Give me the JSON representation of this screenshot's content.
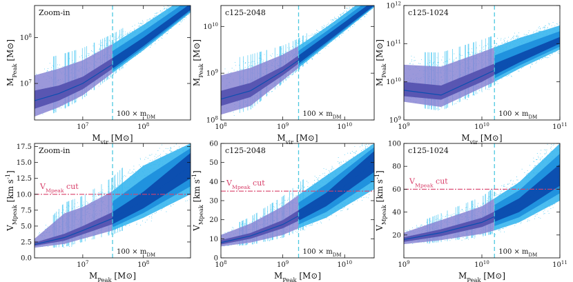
{
  "colors": {
    "points": "#35c0f0",
    "band_outer_cyan": "#38b6ee",
    "band_mid_cyan": "#1e8fdc",
    "band_inner": "#0c4fb0",
    "band_outer_purple": "#8a86d4",
    "band_mid_purple": "#5552b0",
    "vline": "#4bc8e0",
    "hline": "#d8406a"
  },
  "chart_data": [
    {
      "panel": "top-left",
      "type": "scatter",
      "title": "Zoom-in",
      "xlabel": "M_vir [M_sun]",
      "ylabel": "M_Peak [M_sun]",
      "xscale": "log",
      "yscale": "log",
      "xlim": [
        1600000.0,
        600000000.0
      ],
      "ylim": [
        1600000.0,
        500000000.0
      ],
      "xticks": [
        {
          "v": 10000000.0,
          "label": "10^7"
        },
        {
          "v": 100000000.0,
          "label": "10^8"
        }
      ],
      "yticks": [
        {
          "v": 10000000.0,
          "label": "10^7"
        },
        {
          "v": 100000000.0,
          "label": "10^8"
        }
      ],
      "vline": 31000000.0,
      "vline_label": "100 x m_DM",
      "hline": null,
      "hline_label": "",
      "band_x": [
        1600000.0,
        4000000.0,
        10000000.0,
        31000000.0,
        100000000.0,
        600000000.0
      ],
      "median": [
        4200000.0,
        6000000.0,
        10000000.0,
        26000000.0,
        75000000.0,
        430000000.0
      ],
      "band_outer": [
        [
          1900000.0,
          15000000.0
        ],
        [
          3000000.0,
          21000000.0
        ],
        [
          5500000.0,
          32000000.0
        ],
        [
          17000000.0,
          72000000.0
        ],
        [
          53000000.0,
          190000000.0
        ],
        [
          350000000.0,
          900000000.0
        ]
      ],
      "band_inner": [
        [
          2800000.0,
          7000000.0
        ],
        [
          4200000.0,
          9000000.0
        ],
        [
          7500000.0,
          14000000.0
        ],
        [
          21000000.0,
          36000000.0
        ],
        [
          65000000.0,
          100000000.0
        ],
        [
          400000000.0,
          550000000.0
        ]
      ]
    },
    {
      "panel": "top-middle",
      "type": "scatter",
      "title": "c125-2048",
      "xlabel": "M_vir [M_sun]",
      "ylabel": "M_Peak [M_sun]",
      "xscale": "log",
      "yscale": "log",
      "xlim": [
        100000000.0,
        30000000000.0
      ],
      "ylim": [
        100000000.0,
        28000000000.0
      ],
      "xticks": [
        {
          "v": 100000000.0,
          "label": "10^8"
        },
        {
          "v": 1000000000.0,
          "label": "10^9"
        },
        {
          "v": 10000000000.0,
          "label": "10^10"
        }
      ],
      "yticks": [
        {
          "v": 100000000.0,
          "label": "10^8"
        },
        {
          "v": 1000000000.0,
          "label": "10^9"
        },
        {
          "v": 10000000000.0,
          "label": "10^10"
        }
      ],
      "vline": 1800000000.0,
      "vline_label": "100 x m_DM",
      "hline": null,
      "hline_label": "",
      "band_x": [
        100000000.0,
        300000000.0,
        1000000000.0,
        1800000000.0,
        5000000000.0,
        30000000000.0
      ],
      "median": [
        280000000.0,
        420000000.0,
        1100000000.0,
        1900000000.0,
        5300000000.0,
        31000000000.0
      ],
      "band_outer": [
        [
          130000000.0,
          900000000.0
        ],
        [
          200000000.0,
          1300000000.0
        ],
        [
          700000000.0,
          2500000000.0
        ],
        [
          1300000000.0,
          3800000000.0
        ],
        [
          3800000000.0,
          9500000000.0
        ],
        [
          26000000000.0,
          55000000000.0
        ]
      ],
      "band_inner": [
        [
          200000000.0,
          420000000.0
        ],
        [
          310000000.0,
          620000000.0
        ],
        [
          900000000.0,
          1400000000.0
        ],
        [
          1600000000.0,
          2400000000.0
        ],
        [
          4500000000.0,
          6400000000.0
        ],
        [
          28000000000.0,
          36000000000.0
        ]
      ]
    },
    {
      "panel": "top-right",
      "type": "scatter",
      "title": "c125-1024",
      "xlabel": "M_vir [M_sun]",
      "ylabel": "M_Peak [M_sun]",
      "xscale": "log",
      "yscale": "log",
      "xlim": [
        1000000000.0,
        100000000000.0
      ],
      "ylim": [
        1000000000.0,
        1000000000000.0
      ],
      "xticks": [
        {
          "v": 1000000000.0,
          "label": "10^9"
        },
        {
          "v": 10000000000.0,
          "label": "10^10"
        },
        {
          "v": 100000000000.0,
          "label": "10^11"
        }
      ],
      "yticks": [
        {
          "v": 1000000000.0,
          "label": "10^9"
        },
        {
          "v": 10000000000.0,
          "label": "10^10"
        },
        {
          "v": 100000000000.0,
          "label": "10^11"
        },
        {
          "v": 1000000000000.0,
          "label": "10^12"
        }
      ],
      "vline": 14500000000.0,
      "vline_label": "100 x m_DM",
      "hline": null,
      "hline_label": "",
      "band_x": [
        1000000000.0,
        3000000000.0,
        10000000000.0,
        14500000000.0,
        30000000000.0,
        100000000000.0
      ],
      "median": [
        6000000000.0,
        4500000000.0,
        14000000000.0,
        20000000000.0,
        40000000000.0,
        120000000000.0
      ],
      "band_outer": [
        [
          3000000000.0,
          28000000000.0
        ],
        [
          2200000000.0,
          25000000000.0
        ],
        [
          7000000000.0,
          60000000000.0
        ],
        [
          10000000000.0,
          80000000000.0
        ],
        [
          22000000000.0,
          140000000000.0
        ],
        [
          70000000000.0,
          300000000000.0
        ]
      ],
      "band_inner": [
        [
          4200000000.0,
          10000000000.0
        ],
        [
          3400000000.0,
          8000000000.0
        ],
        [
          10000000000.0,
          22000000000.0
        ],
        [
          15000000000.0,
          30000000000.0
        ],
        [
          32000000000.0,
          55000000000.0
        ],
        [
          100000000000.0,
          150000000000.0
        ]
      ]
    },
    {
      "panel": "bottom-left",
      "type": "scatter",
      "title": "Zoom-in",
      "xlabel": "M_Peak [M_sun]",
      "ylabel": "V_Mpeak [km s^-1]",
      "xscale": "log",
      "yscale": "linear",
      "xlim": [
        1600000.0,
        600000000.0
      ],
      "ylim": [
        0,
        18
      ],
      "xticks": [
        {
          "v": 10000000.0,
          "label": "10^7"
        },
        {
          "v": 100000000.0,
          "label": "10^8"
        }
      ],
      "yticks": [
        {
          "v": 0,
          "label": "0.0"
        },
        {
          "v": 2.5,
          "label": "2.5"
        },
        {
          "v": 5,
          "label": "5.0"
        },
        {
          "v": 7.5,
          "label": "7.5"
        },
        {
          "v": 10,
          "label": "10.0"
        },
        {
          "v": 12.5,
          "label": "12.5"
        },
        {
          "v": 15,
          "label": "15.0"
        },
        {
          "v": 17.5,
          "label": "17.5"
        }
      ],
      "vline": 31000000.0,
      "vline_label": "100 x m_DM",
      "hline": 10,
      "hline_label": "V_Mpeak cut",
      "band_x": [
        1600000.0,
        5000000.0,
        10000000.0,
        31000000.0,
        100000000.0,
        600000000.0
      ],
      "median": [
        2.1,
        3.2,
        4.3,
        6.2,
        9.0,
        14.5
      ],
      "band_outer": [
        [
          1.6,
          3.0
        ],
        [
          2.2,
          7.0
        ],
        [
          3.0,
          8.0
        ],
        [
          4.3,
          10.5
        ],
        [
          6.3,
          14.5
        ],
        [
          10.0,
          18.0
        ]
      ],
      "band_inner": [
        [
          1.9,
          2.4
        ],
        [
          2.7,
          3.8
        ],
        [
          3.7,
          5.0
        ],
        [
          5.3,
          7.2
        ],
        [
          7.8,
          10.4
        ],
        [
          12.5,
          16.5
        ]
      ]
    },
    {
      "panel": "bottom-middle",
      "type": "scatter",
      "title": "c125-2048",
      "xlabel": "M_Peak [M_sun]",
      "ylabel": "V_Mpeak [km s^-1]",
      "xscale": "log",
      "yscale": "linear",
      "xlim": [
        100000000.0,
        30000000000.0
      ],
      "ylim": [
        0,
        60
      ],
      "xticks": [
        {
          "v": 100000000.0,
          "label": "10^8"
        },
        {
          "v": 1000000000.0,
          "label": "10^9"
        },
        {
          "v": 10000000000.0,
          "label": "10^10"
        }
      ],
      "yticks": [
        {
          "v": 0,
          "label": "0"
        },
        {
          "v": 10,
          "label": "10"
        },
        {
          "v": 20,
          "label": "20"
        },
        {
          "v": 30,
          "label": "30"
        },
        {
          "v": 40,
          "label": "40"
        },
        {
          "v": 50,
          "label": "50"
        },
        {
          "v": 60,
          "label": "60"
        }
      ],
      "vline": 1800000000.0,
      "vline_label": "100 x m_DM",
      "hline": 35,
      "hline_label": "V_Mpeak cut",
      "band_x": [
        100000000.0,
        300000000.0,
        1000000000.0,
        1800000000.0,
        5000000000.0,
        30000000000.0
      ],
      "median": [
        8.0,
        11.5,
        17.5,
        22.0,
        30.0,
        50.0
      ],
      "band_outer": [
        [
          6.0,
          12.0
        ],
        [
          8.0,
          18.0
        ],
        [
          12.0,
          27.0
        ],
        [
          15.5,
          33.0
        ],
        [
          21.0,
          43.0
        ],
        [
          36.0,
          60.0
        ]
      ],
      "band_inner": [
        [
          7.0,
          9.3
        ],
        [
          10.0,
          13.0
        ],
        [
          15.5,
          19.8
        ],
        [
          19.5,
          25.0
        ],
        [
          27.0,
          34.0
        ],
        [
          45.0,
          56.0
        ]
      ]
    },
    {
      "panel": "bottom-right",
      "type": "scatter",
      "title": "c125-1024",
      "xlabel": "M_Peak [M_sun]",
      "ylabel": "V_Mpeak [km s^-1]",
      "xscale": "log",
      "yscale": "linear",
      "xlim": [
        1000000000.0,
        100000000000.0
      ],
      "ylim": [
        0,
        100
      ],
      "xticks": [
        {
          "v": 1000000000.0,
          "label": "10^9"
        },
        {
          "v": 10000000000.0,
          "label": "10^10"
        },
        {
          "v": 100000000000.0,
          "label": "10^11"
        }
      ],
      "yticks": [
        {
          "v": 20,
          "label": "20"
        },
        {
          "v": 40,
          "label": "40"
        },
        {
          "v": 60,
          "label": "60"
        },
        {
          "v": 80,
          "label": "80"
        },
        {
          "v": 100,
          "label": "100"
        }
      ],
      "vline": 14500000000.0,
      "vline_label": "100 x m_DM",
      "hline": 60,
      "hline_label": "V_Mpeak cut",
      "band_x": [
        1000000000.0,
        3000000000.0,
        10000000000.0,
        14500000000.0,
        30000000000.0,
        100000000000.0
      ],
      "median": [
        16.0,
        22.0,
        31.0,
        36.0,
        46.0,
        72.0
      ],
      "band_outer": [
        [
          12.0,
          22.0
        ],
        [
          15.5,
          33.0
        ],
        [
          21.0,
          45.0
        ],
        [
          24.0,
          52.0
        ],
        [
          31.0,
          66.0
        ],
        [
          50.0,
          100.0
        ]
      ],
      "band_inner": [
        [
          14.0,
          18.0
        ],
        [
          19.0,
          25.0
        ],
        [
          27.0,
          35.0
        ],
        [
          31.5,
          40.5
        ],
        [
          40.0,
          52.0
        ],
        [
          63.0,
          82.0
        ]
      ]
    }
  ]
}
